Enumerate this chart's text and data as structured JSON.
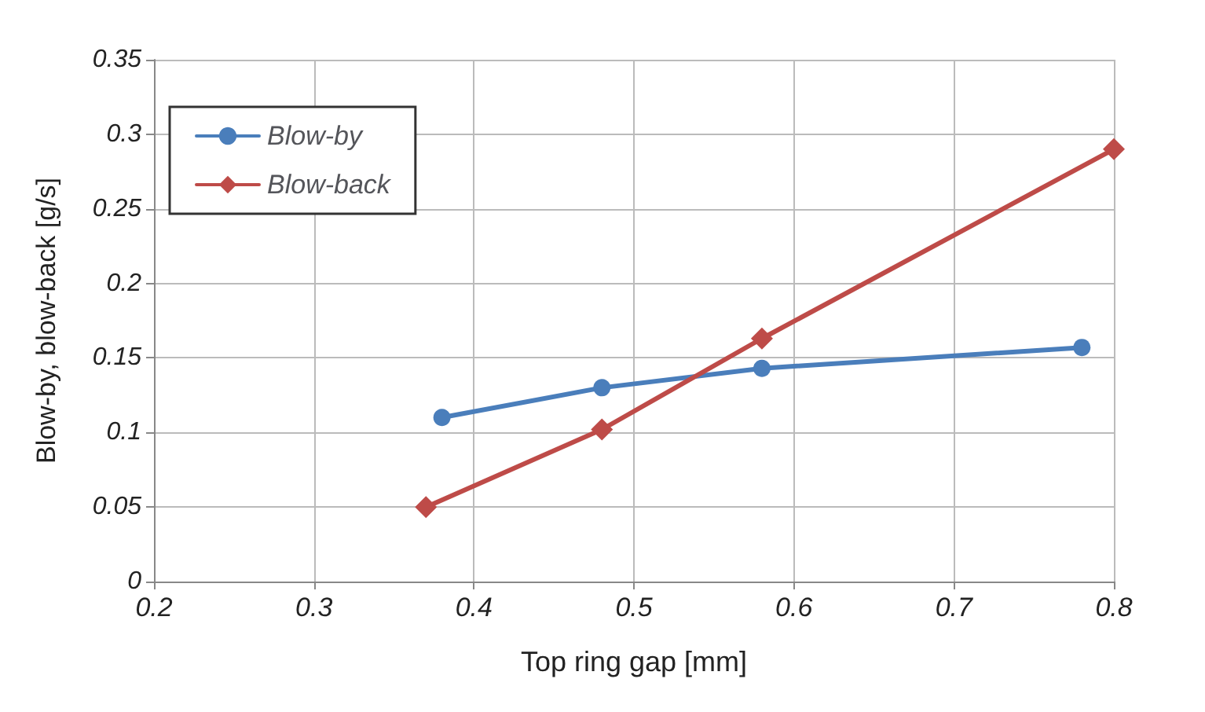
{
  "chart_data": {
    "type": "line",
    "xlabel": "Top ring gap [mm]",
    "ylabel": "Blow-by, blow-back [g/s]",
    "series": [
      {
        "name": "Blow-by",
        "color": "#4a7ebb",
        "marker": "circle",
        "x": [
          0.38,
          0.48,
          0.58,
          0.78
        ],
        "values": [
          0.11,
          0.13,
          0.143,
          0.157
        ]
      },
      {
        "name": "Blow-back",
        "color": "#be4b48",
        "marker": "diamond",
        "x": [
          0.37,
          0.48,
          0.58,
          0.8
        ],
        "values": [
          0.05,
          0.102,
          0.163,
          0.29
        ]
      }
    ],
    "xlim": [
      0.2,
      0.8
    ],
    "xticks": [
      0.2,
      0.3,
      0.4,
      0.5,
      0.6,
      0.7,
      0.8
    ],
    "ylim": [
      0,
      0.35
    ],
    "yticks": [
      0,
      0.05,
      0.1,
      0.15,
      0.2,
      0.25,
      0.3,
      0.35
    ],
    "grid": true,
    "legend": "top left"
  }
}
